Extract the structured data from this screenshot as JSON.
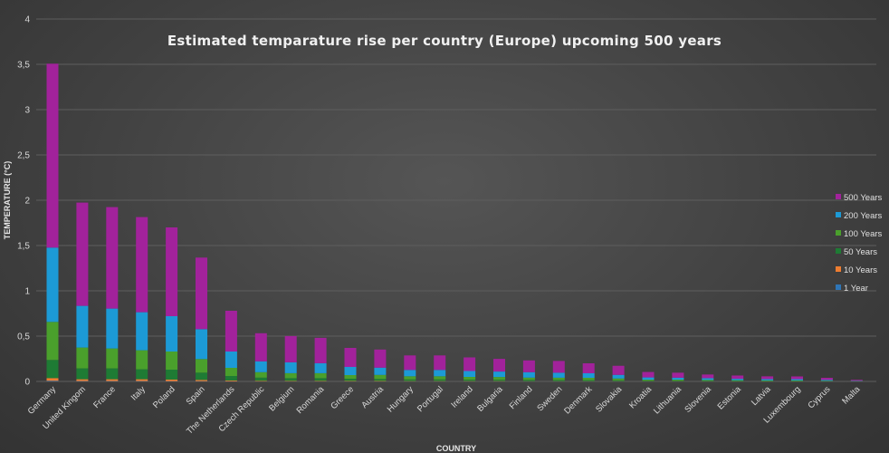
{
  "chart_data": {
    "type": "bar",
    "stacked": true,
    "title": "Estimated temparature rise per country (Europe) upcoming 500 years",
    "xlabel": "COUNTRY",
    "ylabel": "TEMPERATURE (°C)",
    "ylim": [
      0,
      4
    ],
    "yticks": [
      "0",
      "0,5",
      "1",
      "1,5",
      "2",
      "2,5",
      "3",
      "3,5",
      "4"
    ],
    "grid": true,
    "legend_position": "right",
    "categories": [
      "Germany",
      "United Kingom",
      "France",
      "Italy",
      "Poland",
      "Spain",
      "The Netherlands",
      "Czech Republic",
      "Belgium",
      "Romania",
      "Greece",
      "Austria",
      "Hungary",
      "Portugal",
      "Ireland",
      "Bulgaria",
      "Finland",
      "Sweden",
      "Denmark",
      "Slovakia",
      "Kroatia",
      "Lithuania",
      "Slovenia",
      "Estonia",
      "Latvia",
      "Luxembourg",
      "Cyprus",
      "Malta"
    ],
    "series": [
      {
        "name": "1 Year",
        "color": "#2e75b6",
        "values": [
          0.007,
          0.004,
          0.004,
          0.004,
          0.003,
          0.003,
          0.002,
          0.001,
          0.001,
          0.001,
          0.001,
          0.001,
          0.001,
          0.001,
          0.001,
          0.001,
          0.001,
          0.001,
          0.001,
          0.0005,
          0.0003,
          0.0003,
          0.0003,
          0.0002,
          0.0002,
          0.0002,
          0.0001,
          0.0001
        ]
      },
      {
        "name": "10 Years",
        "color": "#ed7d31",
        "values": [
          0.03,
          0.02,
          0.02,
          0.02,
          0.017,
          0.014,
          0.008,
          0.006,
          0.005,
          0.005,
          0.004,
          0.004,
          0.003,
          0.003,
          0.003,
          0.003,
          0.002,
          0.002,
          0.002,
          0.002,
          0.001,
          0.001,
          0.001,
          0.001,
          0.001,
          0.001,
          0.0005,
          0.0003
        ]
      },
      {
        "name": "50 Years",
        "color": "#1e7b34",
        "values": [
          0.2,
          0.12,
          0.12,
          0.11,
          0.11,
          0.08,
          0.05,
          0.035,
          0.03,
          0.03,
          0.025,
          0.022,
          0.018,
          0.018,
          0.016,
          0.015,
          0.014,
          0.013,
          0.012,
          0.01,
          0.006,
          0.006,
          0.005,
          0.004,
          0.003,
          0.003,
          0.002,
          0.001
        ]
      },
      {
        "name": "100 Years",
        "color": "#4aa02c",
        "values": [
          0.42,
          0.23,
          0.22,
          0.21,
          0.2,
          0.15,
          0.09,
          0.06,
          0.055,
          0.055,
          0.04,
          0.045,
          0.035,
          0.035,
          0.03,
          0.03,
          0.025,
          0.025,
          0.025,
          0.02,
          0.012,
          0.012,
          0.01,
          0.008,
          0.007,
          0.007,
          0.005,
          0.002
        ]
      },
      {
        "name": "200 Years",
        "color": "#1c9ad6",
        "values": [
          0.82,
          0.46,
          0.44,
          0.42,
          0.39,
          0.33,
          0.18,
          0.12,
          0.12,
          0.11,
          0.09,
          0.08,
          0.07,
          0.07,
          0.065,
          0.06,
          0.06,
          0.055,
          0.05,
          0.04,
          0.025,
          0.022,
          0.02,
          0.016,
          0.015,
          0.014,
          0.01,
          0.004
        ]
      },
      {
        "name": "500 Years",
        "color": "#a2229b",
        "values": [
          2.03,
          1.14,
          1.12,
          1.05,
          0.98,
          0.79,
          0.45,
          0.31,
          0.29,
          0.28,
          0.21,
          0.2,
          0.16,
          0.16,
          0.15,
          0.14,
          0.13,
          0.13,
          0.11,
          0.1,
          0.06,
          0.055,
          0.04,
          0.036,
          0.03,
          0.03,
          0.022,
          0.01
        ]
      }
    ]
  }
}
